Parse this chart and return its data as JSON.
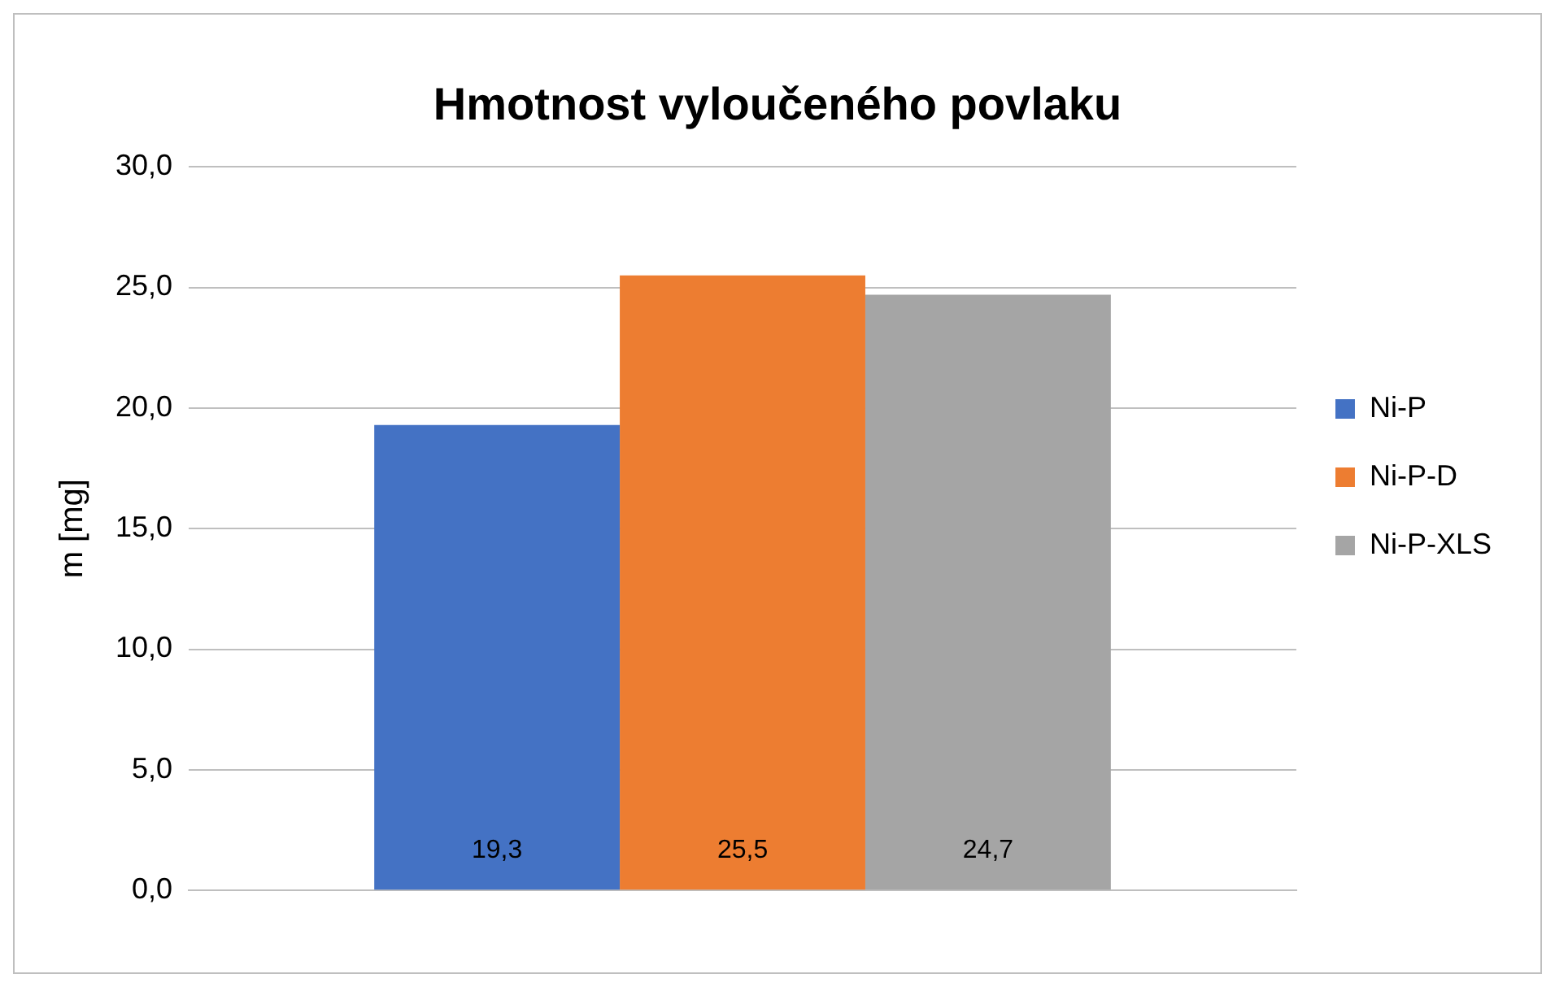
{
  "chart_data": {
    "type": "bar",
    "title": "Hmotnost vyloučeného povlaku",
    "ylabel": "m [mg]",
    "categories": [
      null
    ],
    "series": [
      {
        "name": "Ni-P",
        "color": "#4472c4",
        "values": [
          19.3
        ],
        "value_labels": [
          "19,3"
        ]
      },
      {
        "name": "Ni-P-D",
        "color": "#ed7d31",
        "values": [
          25.5
        ],
        "value_labels": [
          "25,5"
        ]
      },
      {
        "name": "Ni-P-XLS",
        "color": "#a5a5a5",
        "values": [
          24.7
        ],
        "value_labels": [
          "24,7"
        ]
      }
    ],
    "ylim": [
      0,
      30
    ],
    "yticks": [
      {
        "value": 0,
        "label": "0,0"
      },
      {
        "value": 5,
        "label": "5,0"
      },
      {
        "value": 10,
        "label": "10,0"
      },
      {
        "value": 15,
        "label": "15,0"
      },
      {
        "value": 20,
        "label": "20,0"
      },
      {
        "value": 25,
        "label": "25,0"
      },
      {
        "value": 30,
        "label": "30,0"
      }
    ],
    "grid": "y",
    "legend": "right"
  }
}
